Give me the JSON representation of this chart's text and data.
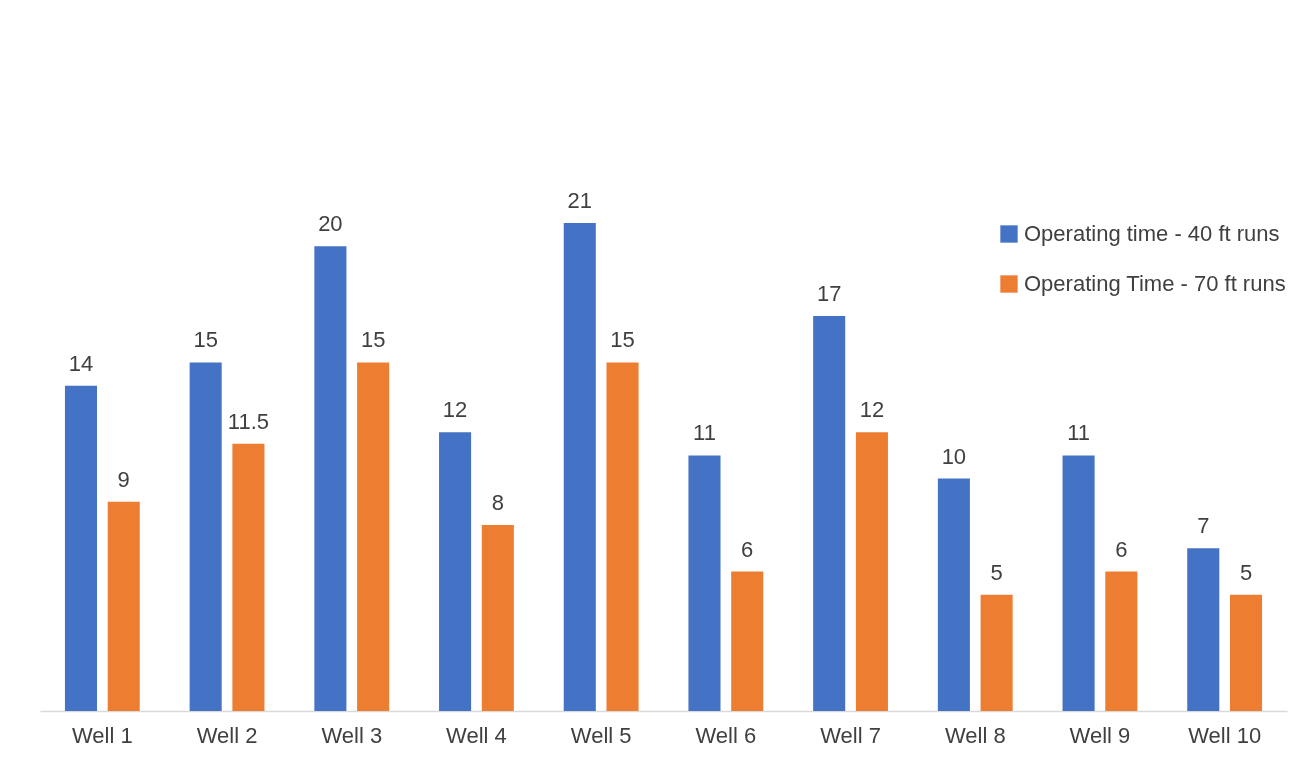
{
  "chart_data": {
    "type": "bar",
    "categories": [
      "Well 1",
      "Well 2",
      "Well 3",
      "Well 4",
      "Well 5",
      "Well 6",
      "Well 7",
      "Well 8",
      "Well 9",
      "Well 10"
    ],
    "series": [
      {
        "name": "Operating time - 40 ft runs",
        "color": "#4472c4",
        "values": [
          14,
          15,
          20,
          12,
          21,
          11,
          17,
          10,
          11,
          7
        ]
      },
      {
        "name": "Operating Time - 70 ft runs",
        "color": "#ed7d31",
        "values": [
          9,
          11.5,
          15,
          8,
          15,
          6,
          12,
          5,
          6,
          5
        ]
      }
    ],
    "tick_labels": "x",
    "data_labels": true,
    "legend": "top right"
  }
}
